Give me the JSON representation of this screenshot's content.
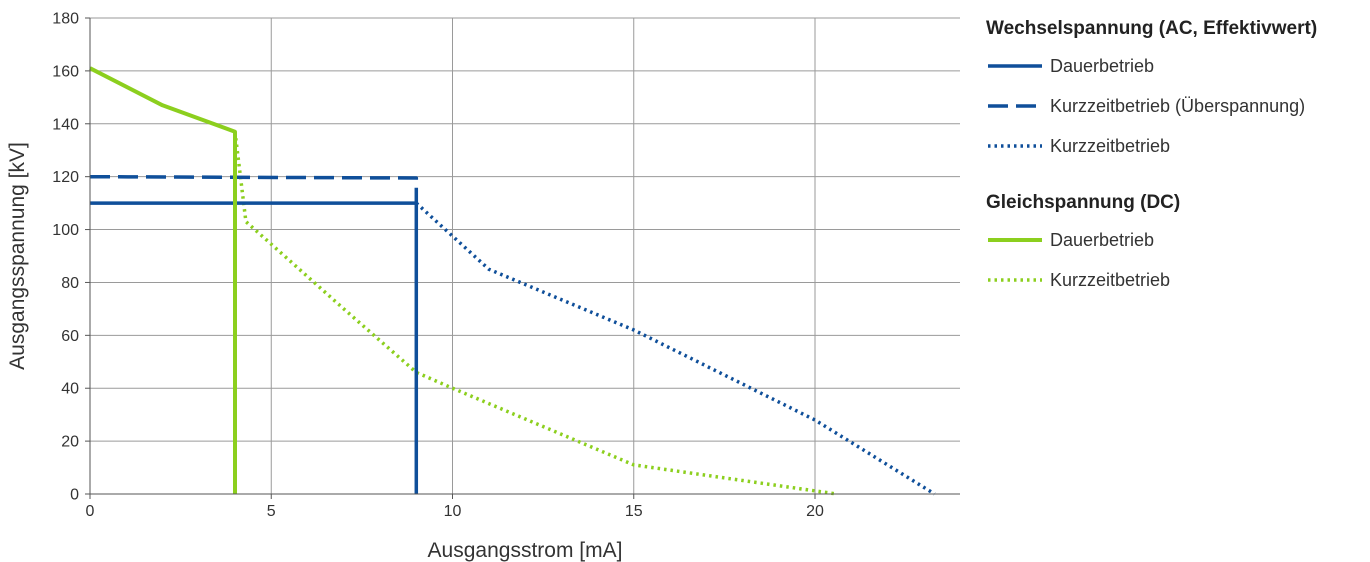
{
  "chart_data": {
    "type": "line",
    "xlabel": "Ausgangsstrom [mA]",
    "ylabel": "Ausgangsspannung [kV]",
    "xlim": [
      0,
      24
    ],
    "ylim": [
      0,
      180
    ],
    "xticks": [
      0,
      5,
      10,
      15,
      20
    ],
    "yticks": [
      0,
      20,
      40,
      60,
      80,
      100,
      120,
      140,
      160,
      180
    ],
    "grid": true,
    "legend_position": "right",
    "legend_groups": [
      {
        "title": "Wechselspannung (AC, Effektivwert)",
        "entries": [
          {
            "label": "Dauerbetrieb",
            "series": "ac_dauer"
          },
          {
            "label": "Kurzzeitbetrieb (Überspannung)",
            "series": "ac_ueber"
          },
          {
            "label": "Kurzzeitbetrieb",
            "series": "ac_kurz"
          }
        ]
      },
      {
        "title": "Gleichspannung (DC)",
        "entries": [
          {
            "label": "Dauerbetrieb",
            "series": "dc_dauer"
          },
          {
            "label": "Kurzzeitbetrieb",
            "series": "dc_kurz"
          }
        ]
      }
    ],
    "series": [
      {
        "id": "ac_dauer",
        "color": "#0f4f9a",
        "style": "solid",
        "x": [
          0,
          9,
          9
        ],
        "y": [
          110,
          110,
          0
        ]
      },
      {
        "id": "ac_ueber",
        "color": "#0f4f9a",
        "style": "dashed",
        "x": [
          0,
          9,
          9
        ],
        "y": [
          120,
          119.5,
          110
        ]
      },
      {
        "id": "ac_kurz",
        "color": "#0f4f9a",
        "style": "dotted",
        "x": [
          9,
          11,
          15,
          20,
          23.3
        ],
        "y": [
          110,
          85,
          62,
          28,
          0
        ]
      },
      {
        "id": "dc_dauer",
        "color": "#8ccf1e",
        "style": "solid",
        "x": [
          0,
          2,
          3,
          4,
          4,
          4
        ],
        "y": [
          161,
          147,
          142,
          137,
          120,
          0
        ]
      },
      {
        "id": "dc_kurz",
        "color": "#8ccf1e",
        "style": "dotted",
        "x": [
          4,
          4.3,
          7,
          9,
          10,
          15,
          20.6
        ],
        "y": [
          137,
          103,
          70,
          46,
          40,
          11,
          0
        ]
      }
    ]
  }
}
